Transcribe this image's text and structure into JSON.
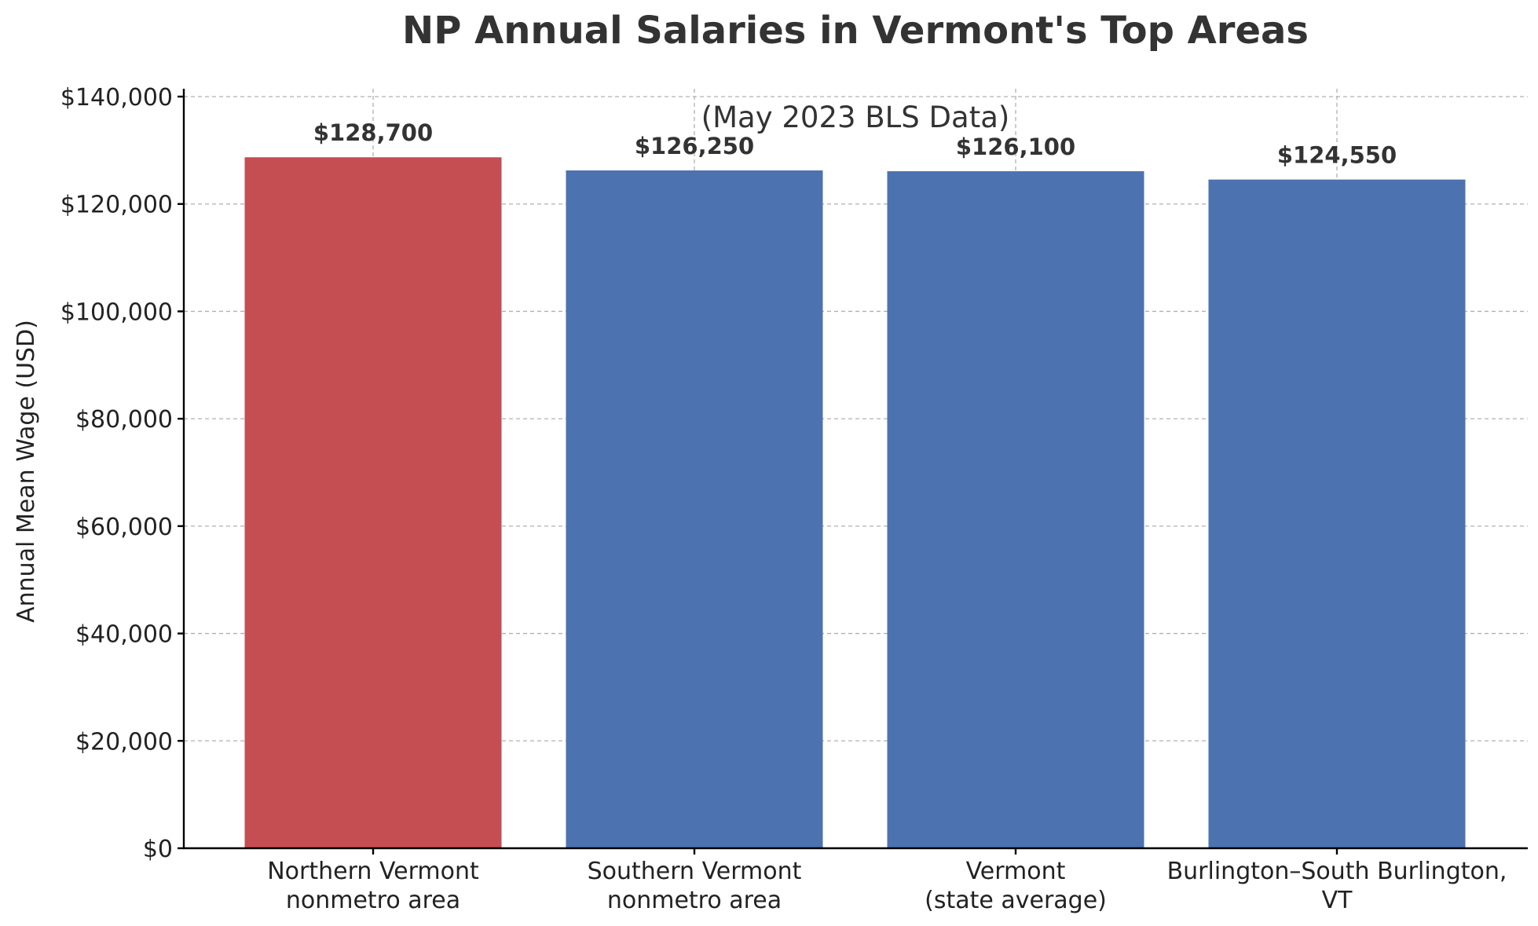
{
  "chart_data": {
    "type": "bar",
    "title": "NP Annual Salaries in Vermont's Top Areas",
    "subtitle": "(May 2023 BLS Data)",
    "xlabel": "",
    "ylabel": "Annual Mean Wage (USD)",
    "ylim": [
      0,
      140000
    ],
    "grid": true,
    "categories": [
      [
        "Northern Vermont",
        "nonmetro area"
      ],
      [
        "Southern Vermont",
        "nonmetro area"
      ],
      [
        "Vermont",
        "(state average)"
      ],
      [
        "Burlington–South Burlington,",
        "VT"
      ]
    ],
    "values": [
      128700,
      126250,
      126100,
      124550
    ],
    "data_labels": [
      "$128,700",
      "$126,250",
      "$126,100",
      "$124,550"
    ],
    "colors": [
      "#c44e52",
      "#4c72b0",
      "#4c72b0",
      "#4c72b0"
    ],
    "yticks": [
      {
        "value": 0,
        "label": "$0"
      },
      {
        "value": 20000,
        "label": "$20,000"
      },
      {
        "value": 40000,
        "label": "$40,000"
      },
      {
        "value": 60000,
        "label": "$60,000"
      },
      {
        "value": 80000,
        "label": "$80,000"
      },
      {
        "value": 100000,
        "label": "$100,000"
      },
      {
        "value": 120000,
        "label": "$120,000"
      },
      {
        "value": 140000,
        "label": "$140,000"
      }
    ]
  }
}
